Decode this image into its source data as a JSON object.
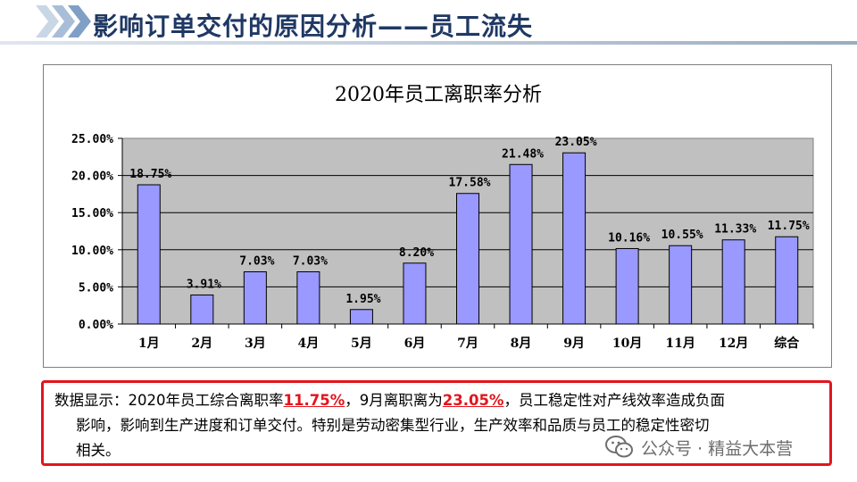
{
  "header": {
    "title": "影响订单交付的原因分析——员工流失"
  },
  "chart_data": {
    "type": "bar",
    "title": "2020年员工离职率分析",
    "categories": [
      "1月",
      "2月",
      "3月",
      "4月",
      "5月",
      "6月",
      "7月",
      "8月",
      "9月",
      "10月",
      "11月",
      "12月",
      "综合"
    ],
    "values": [
      18.75,
      3.91,
      7.03,
      7.03,
      1.95,
      8.2,
      17.58,
      21.48,
      23.05,
      10.16,
      10.55,
      11.33,
      11.75
    ],
    "data_labels": [
      "18.75%",
      "3.91%",
      "7.03%",
      "7.03%",
      "1.95%",
      "8.20%",
      "17.58%",
      "21.48%",
      "23.05%",
      "10.16%",
      "10.55%",
      "11.33%",
      "11.75%"
    ],
    "yticks": [
      "0.00%",
      "5.00%",
      "10.00%",
      "15.00%",
      "20.00%",
      "25.00%"
    ],
    "ylim": [
      0,
      25
    ],
    "grid": true,
    "legend": "none",
    "bar_color": "#9999ff",
    "plot_bg": "#c0c0c0"
  },
  "note": {
    "p1": "数据显示：2020年员工综合离职率",
    "h1": "11.75%",
    "p2": "，9月离职离为",
    "h2": "23.05%",
    "p3": "，员工稳定性对产线效率造成负面",
    "line2": "影响，影响到生产进度和订单交付。特别是劳动密集型行业，生产效率和品质与员工的稳定性密切",
    "line3": "相关。"
  },
  "watermark": {
    "text": "公众号 · 精益大本营"
  },
  "colors": {
    "title": "#1f3864",
    "highlight": "#e3141c",
    "chevron": "#7f9fc7"
  }
}
